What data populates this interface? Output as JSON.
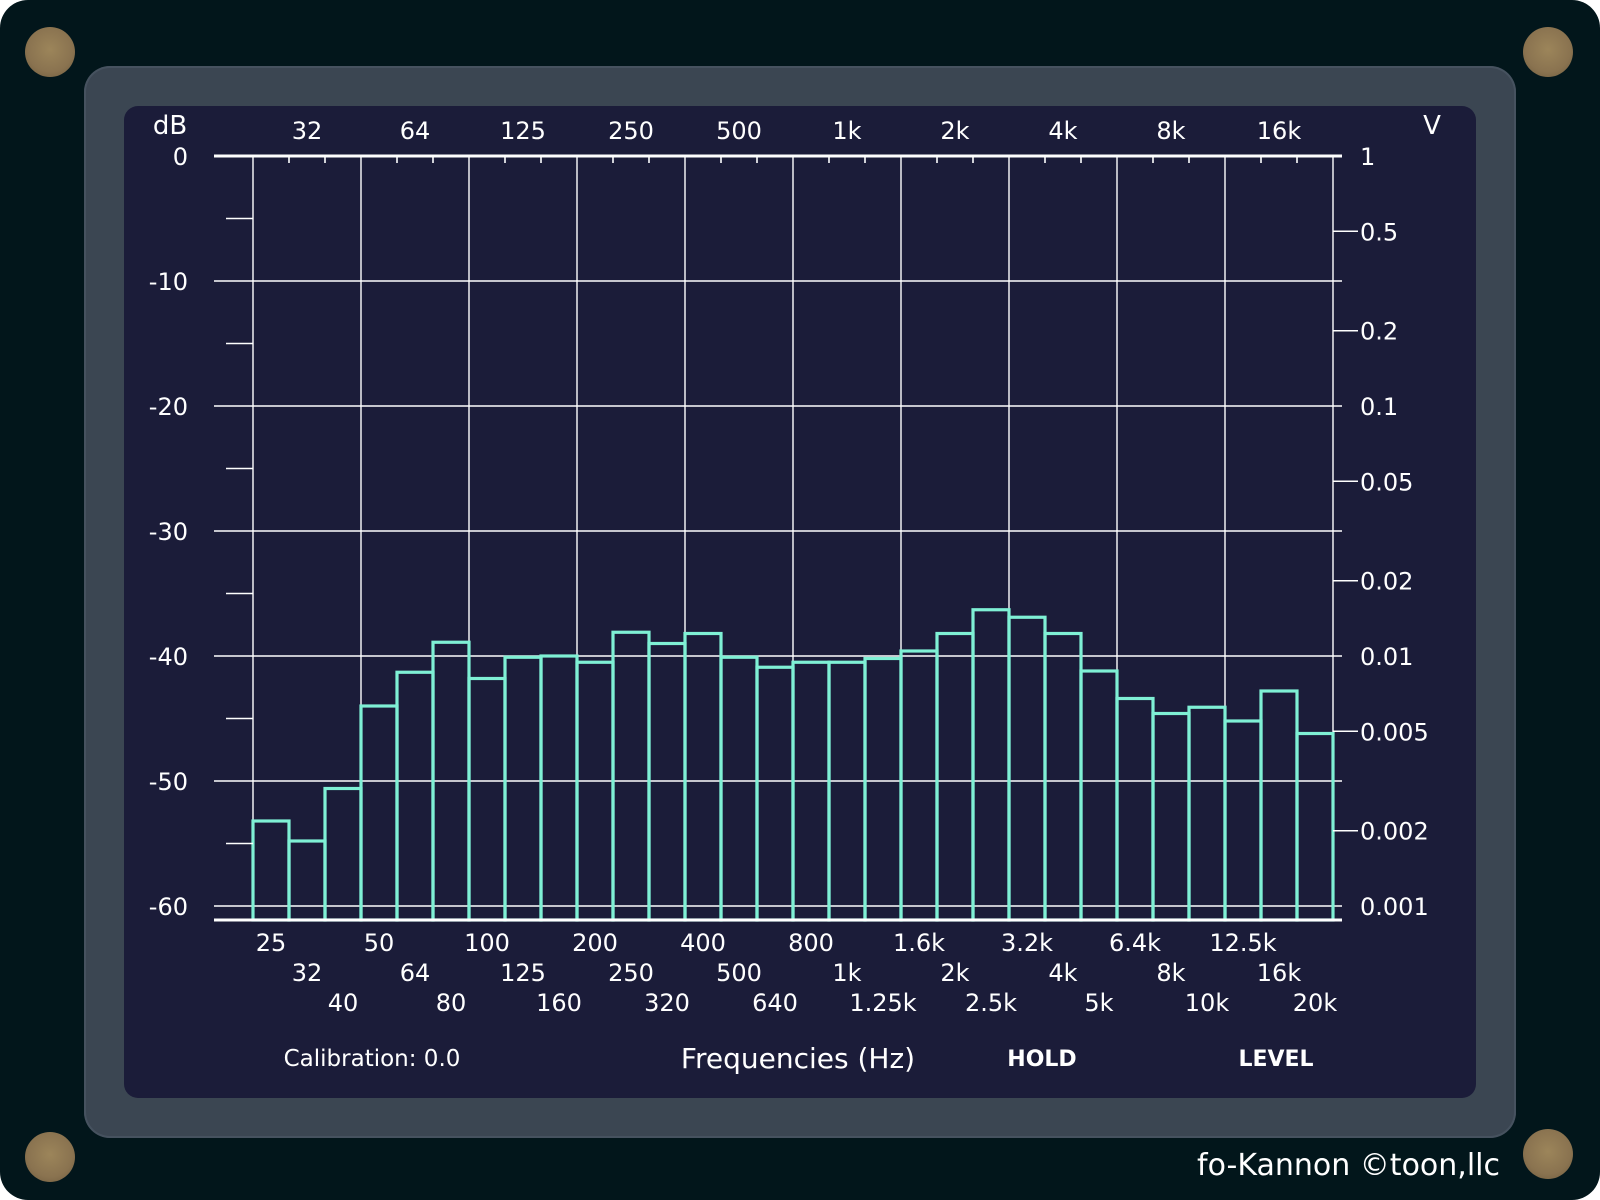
{
  "chart_data": {
    "type": "bar",
    "title": "",
    "xlabel": "Frequencies (Hz)",
    "ylabel": "dB",
    "y2label": "V",
    "ylim": [
      -62.3,
      0
    ],
    "y_ticks": [
      "0",
      "-10",
      "-20",
      "-30",
      "-40",
      "-50",
      "-60"
    ],
    "y2_ticks": [
      "1",
      "0.5",
      "0.2",
      "0.1",
      "0.05",
      "0.02",
      "0.01",
      "0.005",
      "0.002",
      "0.001"
    ],
    "top_ticks": [
      "32",
      "64",
      "125",
      "250",
      "500",
      "1k",
      "2k",
      "4k",
      "8k",
      "16k"
    ],
    "categories": [
      "25",
      "32",
      "40",
      "50",
      "64",
      "80",
      "100",
      "125",
      "160",
      "200",
      "250",
      "320",
      "400",
      "500",
      "640",
      "800",
      "1k",
      "1.25k",
      "1.6k",
      "2k",
      "2.5k",
      "3.2k",
      "4k",
      "5k",
      "6.4k",
      "8k",
      "10k",
      "12.5k",
      "16k",
      "20k"
    ],
    "values": [
      -53.2,
      -54.8,
      -50.6,
      -44.0,
      -41.3,
      -38.9,
      -41.8,
      -40.1,
      -40.0,
      -40.5,
      -38.1,
      -39.0,
      -38.2,
      -40.1,
      -40.9,
      -40.5,
      -40.5,
      -40.2,
      -39.6,
      -38.2,
      -36.3,
      -36.9,
      -38.2,
      -41.2,
      -43.4,
      -44.6,
      -44.1,
      -45.2,
      -42.8,
      -46.2
    ],
    "grid": true,
    "bar_style": "outline",
    "bar_color": "#7ff0d5"
  },
  "footer": {
    "calibration": "Calibration: 0.0",
    "hold": "HOLD",
    "level": "LEVEL"
  },
  "brand": "fo-Kannon ©toon,llc",
  "colors": {
    "screen_bg": "#1b1c39",
    "grid": "#ffffff",
    "bars": "#7ff0d5",
    "bezel": "#3b4652",
    "frame": "#02161b"
  }
}
